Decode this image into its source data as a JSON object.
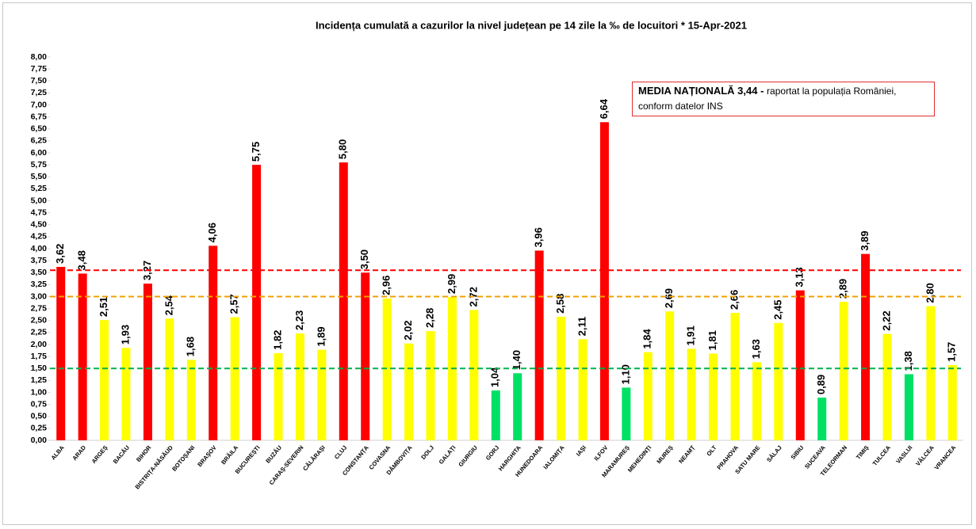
{
  "chart_data": {
    "type": "bar",
    "title": "Incidența cumulată a cazurilor la nivel județean pe 14 zile   la ‰ de locuitori  *   15-Apr-2021",
    "annotation": {
      "bold": "MEDIA NAȚIONALĂ 3,44 -",
      "lines": [
        "raportat la populația României,",
        "conform datelor INS"
      ]
    },
    "categories": [
      "ALBA",
      "ARAD",
      "ARGEȘ",
      "BACĂU",
      "BIHOR",
      "BISTRIȚA-NĂSĂUD",
      "BOTOȘANI",
      "BRAȘOV",
      "BRĂILA",
      "BUCUREȘTI",
      "BUZĂU",
      "CARAȘ-SEVERIN",
      "CĂLĂRAȘI",
      "CLUJ",
      "CONSTANȚA",
      "COVASNA",
      "DÂMBOVIȚA",
      "DOLJ",
      "GALAȚI",
      "GIURGIU",
      "GORJ",
      "HARGHITA",
      "HUNEDOARA",
      "IALOMIȚA",
      "IAȘI",
      "ILFOV",
      "MARAMUREȘ",
      "MEHEDINȚI",
      "MUREȘ",
      "NEAMȚ",
      "OLT",
      "PRAHOVA",
      "SATU MARE",
      "SĂLAJ",
      "SIBIU",
      "SUCEAVA",
      "TELEORMAN",
      "TIMIȘ",
      "TULCEA",
      "VASLUI",
      "VÂLCEA",
      "VRANCEA"
    ],
    "values": [
      3.62,
      3.48,
      2.51,
      1.93,
      3.27,
      2.54,
      1.68,
      4.06,
      2.57,
      5.75,
      1.82,
      2.23,
      1.89,
      5.8,
      3.5,
      2.96,
      2.02,
      2.28,
      2.99,
      2.72,
      1.04,
      1.4,
      3.96,
      2.58,
      2.11,
      6.64,
      1.1,
      1.84,
      2.69,
      1.91,
      1.81,
      2.66,
      1.63,
      2.45,
      3.13,
      0.89,
      2.89,
      3.89,
      2.22,
      1.38,
      2.8,
      1.57
    ],
    "value_labels": [
      "3,62",
      "3,48",
      "2,51",
      "1,93",
      "3,27",
      "2,54",
      "1,68",
      "4,06",
      "2,57",
      "5,75",
      "1,82",
      "2,23",
      "1,89",
      "5,80",
      "3,50",
      "2,96",
      "2,02",
      "2,28",
      "2,99",
      "2,72",
      "1,04",
      "1,40",
      "3,96",
      "2,58",
      "2,11",
      "6,64",
      "1,10",
      "1,84",
      "2,69",
      "1,91",
      "1,81",
      "2,66",
      "1,63",
      "2,45",
      "3,13",
      "0,89",
      "2,89",
      "3,89",
      "2,22",
      "1,38",
      "2,80",
      "1,57"
    ],
    "colors": [
      "#ff0000",
      "#ff0000",
      "#ffff00",
      "#ffff00",
      "#ff0000",
      "#ffff00",
      "#ffff00",
      "#ff0000",
      "#ffff00",
      "#ff0000",
      "#ffff00",
      "#ffff00",
      "#ffff00",
      "#ff0000",
      "#ff0000",
      "#ffff00",
      "#ffff00",
      "#ffff00",
      "#ffff00",
      "#ffff00",
      "#00e064",
      "#00e064",
      "#ff0000",
      "#ffff00",
      "#ffff00",
      "#ff0000",
      "#00e064",
      "#ffff00",
      "#ffff00",
      "#ffff00",
      "#ffff00",
      "#ffff00",
      "#ffff00",
      "#ffff00",
      "#ff0000",
      "#00e064",
      "#ffff00",
      "#ff0000",
      "#ffff00",
      "#00e064",
      "#ffff00",
      "#ffff00"
    ],
    "reference_lines": [
      {
        "value": 3.55,
        "color": "#ff0000"
      },
      {
        "value": 3.0,
        "color": "#f0a000"
      },
      {
        "value": 1.5,
        "color": "#00b050"
      }
    ],
    "ylim": [
      0,
      8
    ],
    "yticks": [
      {
        "value": 0,
        "label": "0,00"
      },
      {
        "value": 0.25,
        "label": "0,25"
      },
      {
        "value": 0.5,
        "label": "0,50"
      },
      {
        "value": 0.75,
        "label": "0,75"
      },
      {
        "value": 1,
        "label": "1,00"
      },
      {
        "value": 1.25,
        "label": "1,25"
      },
      {
        "value": 1.5,
        "label": "1,50"
      },
      {
        "value": 1.75,
        "label": "1,75"
      },
      {
        "value": 2,
        "label": "2,00"
      },
      {
        "value": 2.25,
        "label": "2,25"
      },
      {
        "value": 2.5,
        "label": "2,50"
      },
      {
        "value": 2.75,
        "label": "2,75"
      },
      {
        "value": 3,
        "label": "3,00"
      },
      {
        "value": 3.25,
        "label": "3,25"
      },
      {
        "value": 3.5,
        "label": "3,50"
      },
      {
        "value": 3.75,
        "label": "3,75"
      },
      {
        "value": 4,
        "label": "4,00"
      },
      {
        "value": 4.25,
        "label": "4,25"
      },
      {
        "value": 4.5,
        "label": "4,50"
      },
      {
        "value": 4.75,
        "label": "4,75"
      },
      {
        "value": 5,
        "label": "5,00"
      },
      {
        "value": 5.25,
        "label": "5,25"
      },
      {
        "value": 5.5,
        "label": "5,50"
      },
      {
        "value": 5.75,
        "label": "5,75"
      },
      {
        "value": 6,
        "label": "6,00"
      },
      {
        "value": 6.25,
        "label": "6,25"
      },
      {
        "value": 6.5,
        "label": "6,50"
      },
      {
        "value": 6.75,
        "label": "6,75"
      },
      {
        "value": 7,
        "label": "7,00"
      },
      {
        "value": 7.25,
        "label": "7,25"
      },
      {
        "value": 7.5,
        "label": "7,50"
      },
      {
        "value": 7.75,
        "label": "7,75"
      },
      {
        "value": 8,
        "label": "8,00"
      }
    ]
  }
}
